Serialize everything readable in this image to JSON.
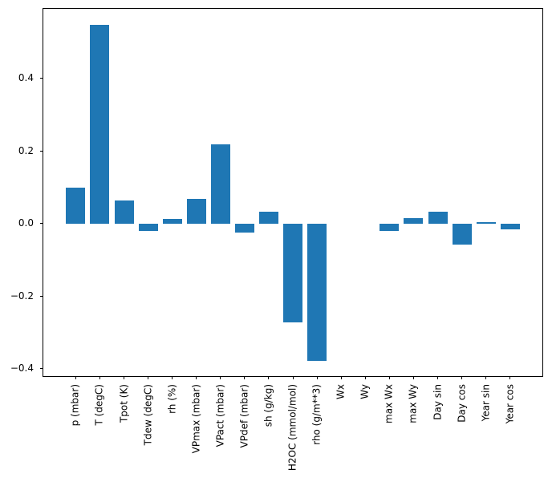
{
  "figure": {
    "background": "#ffffff",
    "title": ""
  },
  "chart_data": {
    "type": "bar",
    "title": "",
    "xlabel": "",
    "ylabel": "",
    "categories": [
      "p (mbar)",
      "T (degC)",
      "Tpot (K)",
      "Tdew (degC)",
      "rh (%)",
      "VPmax (mbar)",
      "VPact (mbar)",
      "VPdef (mbar)",
      "sh (g/kg)",
      "H2OC (mmol/mol)",
      "rho (g/m**3)",
      "Wx",
      "Wy",
      "max Wx",
      "max Wy",
      "Day sin",
      "Day cos",
      "Year sin",
      "Year cos"
    ],
    "values": [
      0.1,
      0.548,
      0.064,
      -0.02,
      0.013,
      0.069,
      0.218,
      -0.024,
      0.033,
      -0.273,
      -0.379,
      0.0,
      0.0,
      -0.02,
      0.016,
      0.033,
      -0.057,
      0.004,
      -0.015
    ],
    "bar_color": "#1f77b4",
    "spine_color": "#000000",
    "grid": false,
    "legend": null,
    "x_tick_rotation": 90,
    "bar_rel_width": 0.8,
    "xlim": [
      -1.34,
      19.34
    ],
    "ylim": [
      -0.421,
      0.592
    ],
    "yticks": [
      0.4,
      0.2,
      0.0,
      -0.2,
      -0.4
    ],
    "ytick_labels": [
      "0.4",
      "0.2",
      "0.0",
      "−0.2",
      "−0.4"
    ]
  }
}
